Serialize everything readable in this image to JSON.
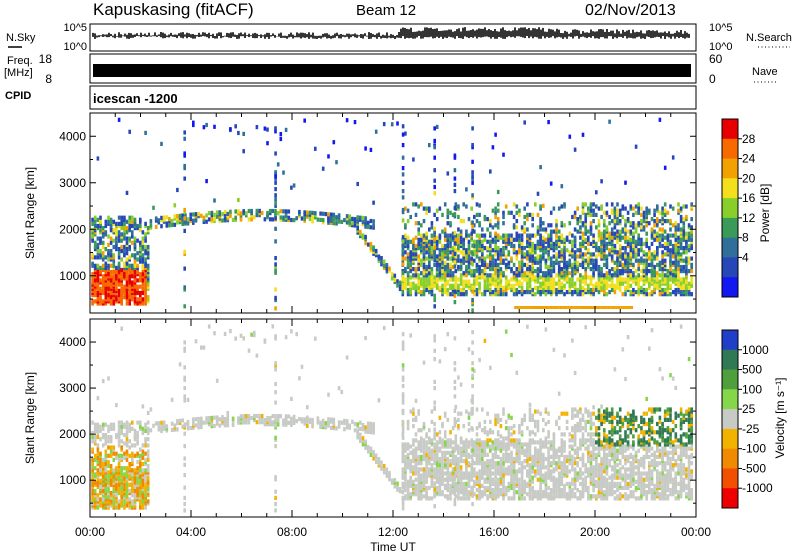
{
  "header": {
    "station": "Kapuskasing (fitACF)",
    "beam": "Beam 12",
    "date": "02/Nov/2013"
  },
  "status_panels": {
    "nsky_label": "N.Sky",
    "nsearch_label": "N.Search",
    "noise_ticks": [
      "10^5",
      "10^0"
    ],
    "freq_label": "Freq.",
    "freq_unit": "[MHz]",
    "freq_ticks": [
      "18",
      "8"
    ],
    "nave_label": "Nave",
    "nave_ticks": [
      "60",
      "0"
    ],
    "cpid_label": "CPID",
    "cpid_value": "icescan -1200"
  },
  "chart_data": [
    {
      "type": "heatmap",
      "panel": "power",
      "ylabel": "Slant Range [km]",
      "yticks": [
        1000,
        2000,
        3000,
        4000
      ],
      "ylim": [
        200,
        4500
      ],
      "xlim_hours": [
        0,
        24
      ],
      "colorbar_label": "Power [dB]",
      "colorbar_ticks": [
        "28",
        "24",
        "20",
        "16",
        "12",
        "8",
        "4"
      ],
      "colors": [
        "#e80000",
        "#f86a00",
        "#f2a200",
        "#f3df1e",
        "#88cf2c",
        "#3a9a57",
        "#2f6f9a",
        "#2547b8",
        "#1218f0"
      ]
    },
    {
      "type": "heatmap",
      "panel": "velocity",
      "ylabel": "Slant Range [km]",
      "yticks": [
        1000,
        2000,
        3000,
        4000
      ],
      "ylim": [
        200,
        4500
      ],
      "xlim_hours": [
        0,
        24
      ],
      "colorbar_label": "Velocity [m s⁻¹]",
      "colorbar_ticks": [
        "1000",
        "500",
        "100",
        "25",
        "-25",
        "-100",
        "-500",
        "-1000"
      ],
      "colors": [
        "#1f3fc8",
        "#2f7a55",
        "#4f9f3c",
        "#86d64a",
        "#c8cbc5",
        "#f2b200",
        "#f08a00",
        "#f25000",
        "#ee0000"
      ]
    }
  ],
  "xaxis": {
    "ticks": [
      "00:00",
      "04:00",
      "08:00",
      "12:00",
      "16:00",
      "20:00",
      "00:00"
    ],
    "label": "Time UT"
  }
}
